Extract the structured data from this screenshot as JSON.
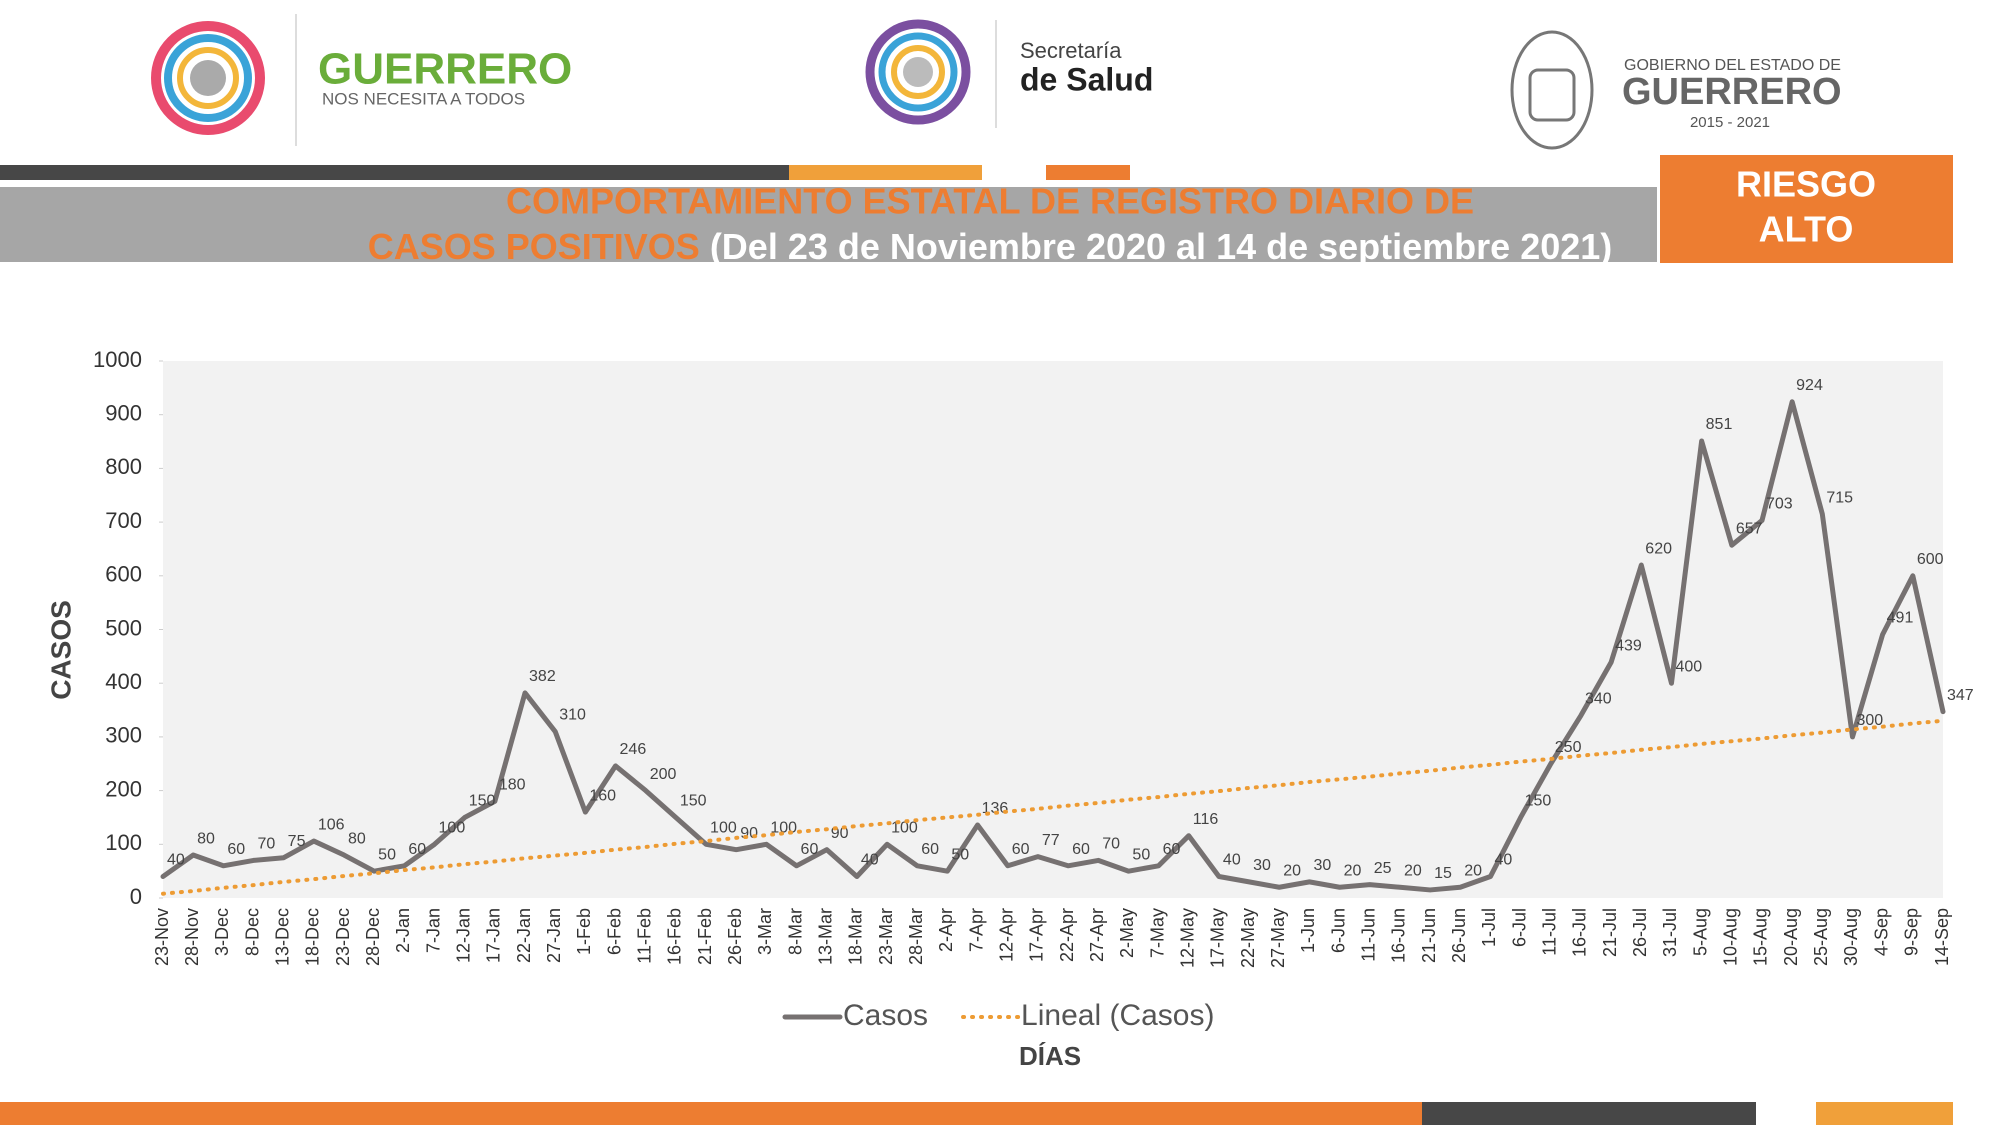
{
  "header": {
    "left_logo_title": "GUERRERO",
    "left_logo_subtitle": "NOS NECESITA A TODOS",
    "center_logo_line1": "Secretaría",
    "center_logo_line2": "de Salud",
    "right_logo_line1": "GOBIERNO DEL ESTADO DE",
    "right_logo_line2": "GUERRERO",
    "right_logo_years": "2015 - 2021",
    "title_line1": "COMPORTAMIENTO ESTATAL DE REGISTRO DIARIO DE",
    "title_line2_orange": "CASOS POSITIVOS",
    "title_line2_white": "(Del 23 de Noviembre 2020 al 14 de septiembre 2021)",
    "risk_line1": "RIESGO",
    "risk_line2": "ALTO"
  },
  "chart_data": {
    "type": "line",
    "x_label": "DÍAS",
    "y_label": "CASOS",
    "categories": [
      "23-Nov",
      "28-Nov",
      "3-Dec",
      "8-Dec",
      "13-Dec",
      "18-Dec",
      "23-Dec",
      "28-Dec",
      "2-Jan",
      "7-Jan",
      "12-Jan",
      "17-Jan",
      "22-Jan",
      "27-Jan",
      "1-Feb",
      "6-Feb",
      "11-Feb",
      "16-Feb",
      "21-Feb",
      "26-Feb",
      "3-Mar",
      "8-Mar",
      "13-Mar",
      "18-Mar",
      "23-Mar",
      "28-Mar",
      "2-Apr",
      "7-Apr",
      "12-Apr",
      "17-Apr",
      "22-Apr",
      "27-Apr",
      "2-May",
      "7-May",
      "12-May",
      "17-May",
      "22-May",
      "27-May",
      "1-Jun",
      "6-Jun",
      "11-Jun",
      "16-Jun",
      "21-Jun",
      "26-Jun",
      "1-Jul",
      "6-Jul",
      "11-Jul",
      "16-Jul",
      "21-Jul",
      "26-Jul",
      "31-Jul",
      "5-Aug",
      "10-Aug",
      "15-Aug",
      "20-Aug",
      "25-Aug",
      "30-Aug",
      "4-Sep",
      "9-Sep",
      "14-Sep"
    ],
    "series": [
      {
        "name": "Casos",
        "color": "#767171",
        "style": "solid",
        "show_values": true,
        "values": [
          40,
          80,
          60,
          70,
          75,
          106,
          80,
          50,
          60,
          100,
          150,
          180,
          382,
          310,
          160,
          246,
          200,
          150,
          100,
          90,
          100,
          60,
          90,
          40,
          100,
          60,
          50,
          136,
          60,
          77,
          60,
          70,
          50,
          60,
          116,
          40,
          30,
          20,
          30,
          20,
          25,
          20,
          15,
          20,
          40,
          150,
          250,
          340,
          439,
          620,
          400,
          851,
          657,
          703,
          924,
          715,
          300,
          491,
          600,
          347
        ]
      },
      {
        "name": "Lineal (Casos)",
        "color": "#ed9b33",
        "style": "dotted",
        "show_values": false,
        "values": [
          8,
          13,
          19,
          24,
          30,
          35,
          41,
          46,
          52,
          57,
          63,
          68,
          74,
          79,
          84,
          90,
          95,
          101,
          106,
          112,
          117,
          123,
          128,
          134,
          139,
          145,
          150,
          155,
          161,
          166,
          172,
          177,
          183,
          188,
          194,
          199,
          205,
          210,
          216,
          221,
          226,
          232,
          237,
          243,
          248,
          254,
          259,
          265,
          270,
          276,
          281,
          287,
          292,
          297,
          303,
          308,
          314,
          319,
          325,
          330
        ]
      }
    ],
    "ylim": [
      0,
      1000
    ],
    "yticks": [
      0,
      100,
      200,
      300,
      400,
      500,
      600,
      700,
      800,
      900,
      1000
    ],
    "grid": false,
    "legend": "bottom"
  }
}
